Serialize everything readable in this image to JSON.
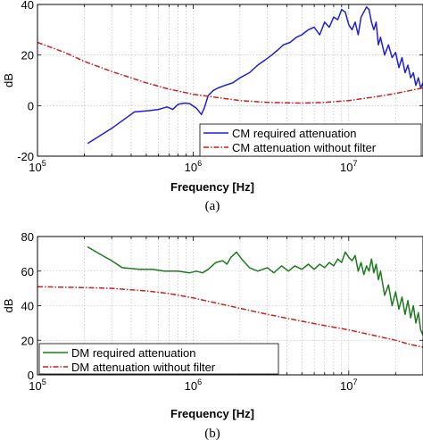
{
  "chart_data": [
    {
      "type": "line",
      "panel_label": "(a)",
      "xlabel": "Frequency [Hz]",
      "ylabel": "dB",
      "xscale": "log",
      "xlim": [
        100000,
        30000000
      ],
      "ylim": [
        -20,
        40
      ],
      "yticks": [
        "-20",
        "0",
        "20",
        "40"
      ],
      "xticks": [
        {
          "base": "10",
          "exp": "5"
        },
        {
          "base": "10",
          "exp": "6"
        },
        {
          "base": "10",
          "exp": "7"
        }
      ],
      "grid": true,
      "legend_position": "lower-right",
      "series": [
        {
          "name": "CM required attenuation",
          "color": "#1f1fd6",
          "style": "solid",
          "points": [
            [
              210000,
              -15
            ],
            [
              300000,
              -9
            ],
            [
              420000,
              -2.5
            ],
            [
              520000,
              -2
            ],
            [
              600000,
              -1.5
            ],
            [
              680000,
              -0.5
            ],
            [
              740000,
              -1.5
            ],
            [
              800000,
              0.5
            ],
            [
              880000,
              1
            ],
            [
              950000,
              0.8
            ],
            [
              1050000,
              -1
            ],
            [
              1130000,
              -3.5
            ],
            [
              1180000,
              -1
            ],
            [
              1250000,
              4
            ],
            [
              1350000,
              6
            ],
            [
              1450000,
              7
            ],
            [
              1600000,
              8
            ],
            [
              1800000,
              9
            ],
            [
              2000000,
              11
            ],
            [
              2300000,
              13
            ],
            [
              2600000,
              16
            ],
            [
              2900000,
              18
            ],
            [
              3200000,
              20
            ],
            [
              3500000,
              22
            ],
            [
              3800000,
              24
            ],
            [
              4200000,
              25
            ],
            [
              4600000,
              27
            ],
            [
              5000000,
              28
            ],
            [
              5500000,
              30
            ],
            [
              6000000,
              31
            ],
            [
              6500000,
              28
            ],
            [
              7000000,
              33
            ],
            [
              7500000,
              31
            ],
            [
              8000000,
              35
            ],
            [
              8500000,
              34
            ],
            [
              9000000,
              38
            ],
            [
              9500000,
              37
            ],
            [
              10000000,
              32
            ],
            [
              10500000,
              30
            ],
            [
              11000000,
              33
            ],
            [
              11500000,
              28
            ],
            [
              12000000,
              35
            ],
            [
              12500000,
              37
            ],
            [
              13000000,
              39
            ],
            [
              13500000,
              38
            ],
            [
              14000000,
              33
            ],
            [
              14500000,
              30
            ],
            [
              15000000,
              33
            ],
            [
              15500000,
              24
            ],
            [
              16000000,
              27
            ],
            [
              17000000,
              20
            ],
            [
              18000000,
              24
            ],
            [
              19000000,
              19
            ],
            [
              20000000,
              21
            ],
            [
              21000000,
              15
            ],
            [
              22000000,
              19
            ],
            [
              23000000,
              13
            ],
            [
              24000000,
              16
            ],
            [
              25000000,
              11
            ],
            [
              26000000,
              13
            ],
            [
              27000000,
              8
            ],
            [
              28000000,
              11
            ],
            [
              29000000,
              7
            ],
            [
              30000000,
              9
            ]
          ]
        },
        {
          "name": "CM attenuation without filter",
          "color": "#cc1f1f",
          "style": "dash-dot",
          "points": [
            [
              100000,
              25
            ],
            [
              150000,
              21
            ],
            [
              200000,
              17.5
            ],
            [
              300000,
              13.5
            ],
            [
              500000,
              9
            ],
            [
              700000,
              6.5
            ],
            [
              1000000,
              4.5
            ],
            [
              1500000,
              3
            ],
            [
              2000000,
              2
            ],
            [
              3000000,
              1.3
            ],
            [
              5000000,
              1
            ],
            [
              7000000,
              1.3
            ],
            [
              10000000,
              2
            ],
            [
              15000000,
              3.5
            ],
            [
              20000000,
              4.8
            ],
            [
              25000000,
              6
            ],
            [
              30000000,
              7
            ]
          ]
        }
      ]
    },
    {
      "type": "line",
      "panel_label": "(b)",
      "xlabel": "Frequency [Hz]",
      "ylabel": "dB",
      "xscale": "log",
      "xlim": [
        100000,
        30000000
      ],
      "ylim": [
        0,
        80
      ],
      "yticks": [
        "0",
        "20",
        "40",
        "60",
        "80"
      ],
      "xticks": [
        {
          "base": "10",
          "exp": "5"
        },
        {
          "base": "10",
          "exp": "6"
        },
        {
          "base": "10",
          "exp": "7"
        }
      ],
      "grid": true,
      "legend_position": "lower-left",
      "series": [
        {
          "name": "DM required attenuation",
          "color": "#1e7a1e",
          "style": "solid",
          "points": [
            [
              210000,
              74
            ],
            [
              250000,
              70
            ],
            [
              300000,
              66
            ],
            [
              350000,
              62
            ],
            [
              450000,
              61
            ],
            [
              550000,
              61
            ],
            [
              650000,
              60
            ],
            [
              800000,
              60
            ],
            [
              950000,
              59
            ],
            [
              1050000,
              60
            ],
            [
              1150000,
              59
            ],
            [
              1250000,
              61
            ],
            [
              1400000,
              65
            ],
            [
              1550000,
              66
            ],
            [
              1650000,
              64
            ],
            [
              1750000,
              68
            ],
            [
              1900000,
              71
            ],
            [
              2050000,
              67
            ],
            [
              2300000,
              62
            ],
            [
              2600000,
              60
            ],
            [
              3000000,
              62
            ],
            [
              3300000,
              59
            ],
            [
              3700000,
              63
            ],
            [
              4100000,
              60
            ],
            [
              4500000,
              63
            ],
            [
              5000000,
              61
            ],
            [
              5500000,
              64
            ],
            [
              6000000,
              61
            ],
            [
              6500000,
              64
            ],
            [
              7000000,
              62
            ],
            [
              7500000,
              65
            ],
            [
              8000000,
              63
            ],
            [
              8500000,
              67
            ],
            [
              9000000,
              65
            ],
            [
              9500000,
              71
            ],
            [
              10000000,
              68
            ],
            [
              10500000,
              66
            ],
            [
              11000000,
              69
            ],
            [
              11500000,
              60
            ],
            [
              12000000,
              65
            ],
            [
              12500000,
              58
            ],
            [
              13000000,
              63
            ],
            [
              13500000,
              60
            ],
            [
              14000000,
              67
            ],
            [
              14500000,
              59
            ],
            [
              15000000,
              64
            ],
            [
              15500000,
              55
            ],
            [
              16000000,
              60
            ],
            [
              17000000,
              46
            ],
            [
              18000000,
              52
            ],
            [
              19000000,
              40
            ],
            [
              20000000,
              48
            ],
            [
              21000000,
              38
            ],
            [
              22000000,
              45
            ],
            [
              23000000,
              35
            ],
            [
              24000000,
              43
            ],
            [
              25000000,
              33
            ],
            [
              26000000,
              40
            ],
            [
              27000000,
              30
            ],
            [
              28000000,
              36
            ],
            [
              29000000,
              26
            ],
            [
              30000000,
              23
            ]
          ]
        },
        {
          "name": "DM attenuation without filter",
          "color": "#cc1f1f",
          "style": "dash-dot",
          "points": [
            [
              100000,
              51
            ],
            [
              200000,
              50.5
            ],
            [
              300000,
              50
            ],
            [
              500000,
              48.5
            ],
            [
              700000,
              47
            ],
            [
              1000000,
              44.5
            ],
            [
              1500000,
              41
            ],
            [
              2000000,
              38.5
            ],
            [
              3000000,
              35
            ],
            [
              5000000,
              31
            ],
            [
              7000000,
              28.5
            ],
            [
              10000000,
              26
            ],
            [
              15000000,
              22.5
            ],
            [
              20000000,
              20
            ],
            [
              25000000,
              17.5
            ],
            [
              30000000,
              16
            ]
          ]
        }
      ]
    }
  ]
}
